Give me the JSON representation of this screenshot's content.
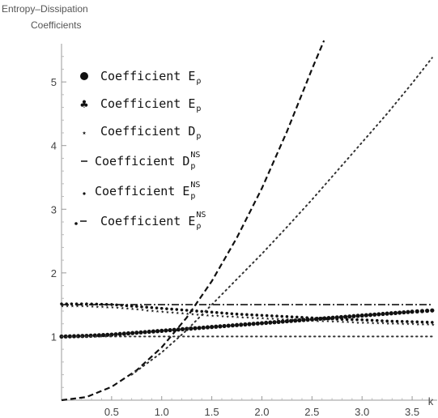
{
  "chart_data": {
    "type": "line",
    "ylabel": [
      "Entropy–Dissipation",
      "Coefficients"
    ],
    "xlabel": "k",
    "xlim": [
      0,
      3.75
    ],
    "ylim": [
      0,
      5.6
    ],
    "xticks": [
      0.5,
      1.0,
      1.5,
      2.0,
      2.5,
      3.0,
      3.5
    ],
    "xtick_labels": [
      "0.5",
      "1.0",
      "1.5",
      "2.0",
      "2.5",
      "3.0",
      "3.5"
    ],
    "yticks": [
      1,
      2,
      3,
      4,
      5
    ],
    "ytick_labels": [
      "1",
      "2",
      "3",
      "4",
      "5"
    ],
    "grid": false,
    "legend_position": "top-left",
    "series": [
      {
        "name": "Coefficient E_ρ",
        "legend_main": "Coefficient E",
        "legend_sub": "ρ",
        "legend_sup": "",
        "marker": "dot",
        "style": "markers",
        "x": [
          0.0,
          0.25,
          0.5,
          0.75,
          1.0,
          1.25,
          1.5,
          1.75,
          2.0,
          2.25,
          2.5,
          2.75,
          3.0,
          3.25,
          3.5,
          3.7
        ],
        "y": [
          1.0,
          1.01,
          1.03,
          1.06,
          1.09,
          1.12,
          1.15,
          1.18,
          1.21,
          1.24,
          1.27,
          1.3,
          1.33,
          1.36,
          1.39,
          1.41
        ]
      },
      {
        "name": "Coefficient E_p",
        "legend_main": "Coefficient E",
        "legend_sub": "p",
        "legend_sup": "",
        "marker": "club",
        "style": "markers",
        "x": [
          0.0,
          0.25,
          0.5,
          0.75,
          1.0,
          1.25,
          1.5,
          1.75,
          2.0,
          2.25,
          2.5,
          2.75,
          3.0,
          3.25,
          3.5,
          3.7
        ],
        "y": [
          1.5,
          1.5,
          1.49,
          1.46,
          1.43,
          1.4,
          1.37,
          1.34,
          1.32,
          1.3,
          1.28,
          1.26,
          1.25,
          1.23,
          1.22,
          1.21
        ]
      },
      {
        "name": "Coefficient D_p",
        "legend_main": "Coefficient D",
        "legend_sub": "p",
        "legend_sup": "",
        "marker": "star",
        "style": "markers",
        "x": [
          0.0,
          0.25,
          0.5,
          0.75,
          1.0,
          1.25,
          1.5,
          1.75,
          2.0,
          2.25,
          2.5,
          2.75,
          3.0,
          3.25,
          3.5,
          3.7
        ],
        "y": [
          1.5,
          1.5,
          1.48,
          1.45,
          1.41,
          1.38,
          1.35,
          1.33,
          1.31,
          1.29,
          1.27,
          1.26,
          1.24,
          1.23,
          1.22,
          1.21
        ]
      },
      {
        "name": "Coefficient D_p^NS",
        "legend_main": "Coefficient D",
        "legend_sub": "p",
        "legend_sup": "NS",
        "marker": "dash",
        "style": "dashed",
        "x": [
          0.0,
          0.25,
          0.5,
          0.75,
          1.0,
          1.25,
          1.5,
          1.75,
          2.0,
          2.25,
          2.5,
          2.62
        ],
        "y": [
          0.0,
          0.05,
          0.21,
          0.47,
          0.83,
          1.3,
          1.87,
          2.55,
          3.33,
          4.22,
          5.2,
          5.65
        ]
      },
      {
        "name": "Coefficient E_p^NS",
        "legend_main": "Coefficient E",
        "legend_sub": "p",
        "legend_sup": "NS",
        "marker": "small-dot",
        "style": "dotted",
        "x": [
          0.0,
          0.25,
          0.5,
          0.75,
          1.0,
          1.25,
          1.5,
          1.75,
          2.0,
          2.25,
          2.5,
          2.75,
          3.0,
          3.25,
          3.5,
          3.7
        ],
        "y": [
          1.0,
          1.0,
          1.0,
          1.0,
          1.0,
          1.0,
          1.0,
          1.0,
          1.0,
          1.0,
          1.0,
          1.0,
          1.0,
          1.0,
          1.0,
          1.0
        ]
      },
      {
        "name": "Coefficient E_ρ^NS",
        "legend_main": "Coefficient E",
        "legend_sub": "ρ",
        "legend_sup": "NS",
        "marker": "dot-dash",
        "style": "dashdot",
        "x": [
          0.0,
          0.5,
          1.0,
          1.5,
          2.0,
          2.5,
          3.0,
          3.5,
          3.7
        ],
        "y": [
          1.5,
          1.5,
          1.5,
          1.5,
          1.5,
          1.5,
          1.5,
          1.5,
          1.5
        ]
      },
      {
        "name": "rising dotted curve",
        "marker": "small-dot",
        "style": "dotted-line",
        "x": [
          0.7,
          1.0,
          1.25,
          1.5,
          1.75,
          2.0,
          2.25,
          2.5,
          2.75,
          3.0,
          3.25,
          3.5,
          3.7
        ],
        "y": [
          0.4,
          0.75,
          1.1,
          1.5,
          1.9,
          2.3,
          2.72,
          3.15,
          3.6,
          4.05,
          4.5,
          4.98,
          5.38
        ]
      }
    ]
  }
}
